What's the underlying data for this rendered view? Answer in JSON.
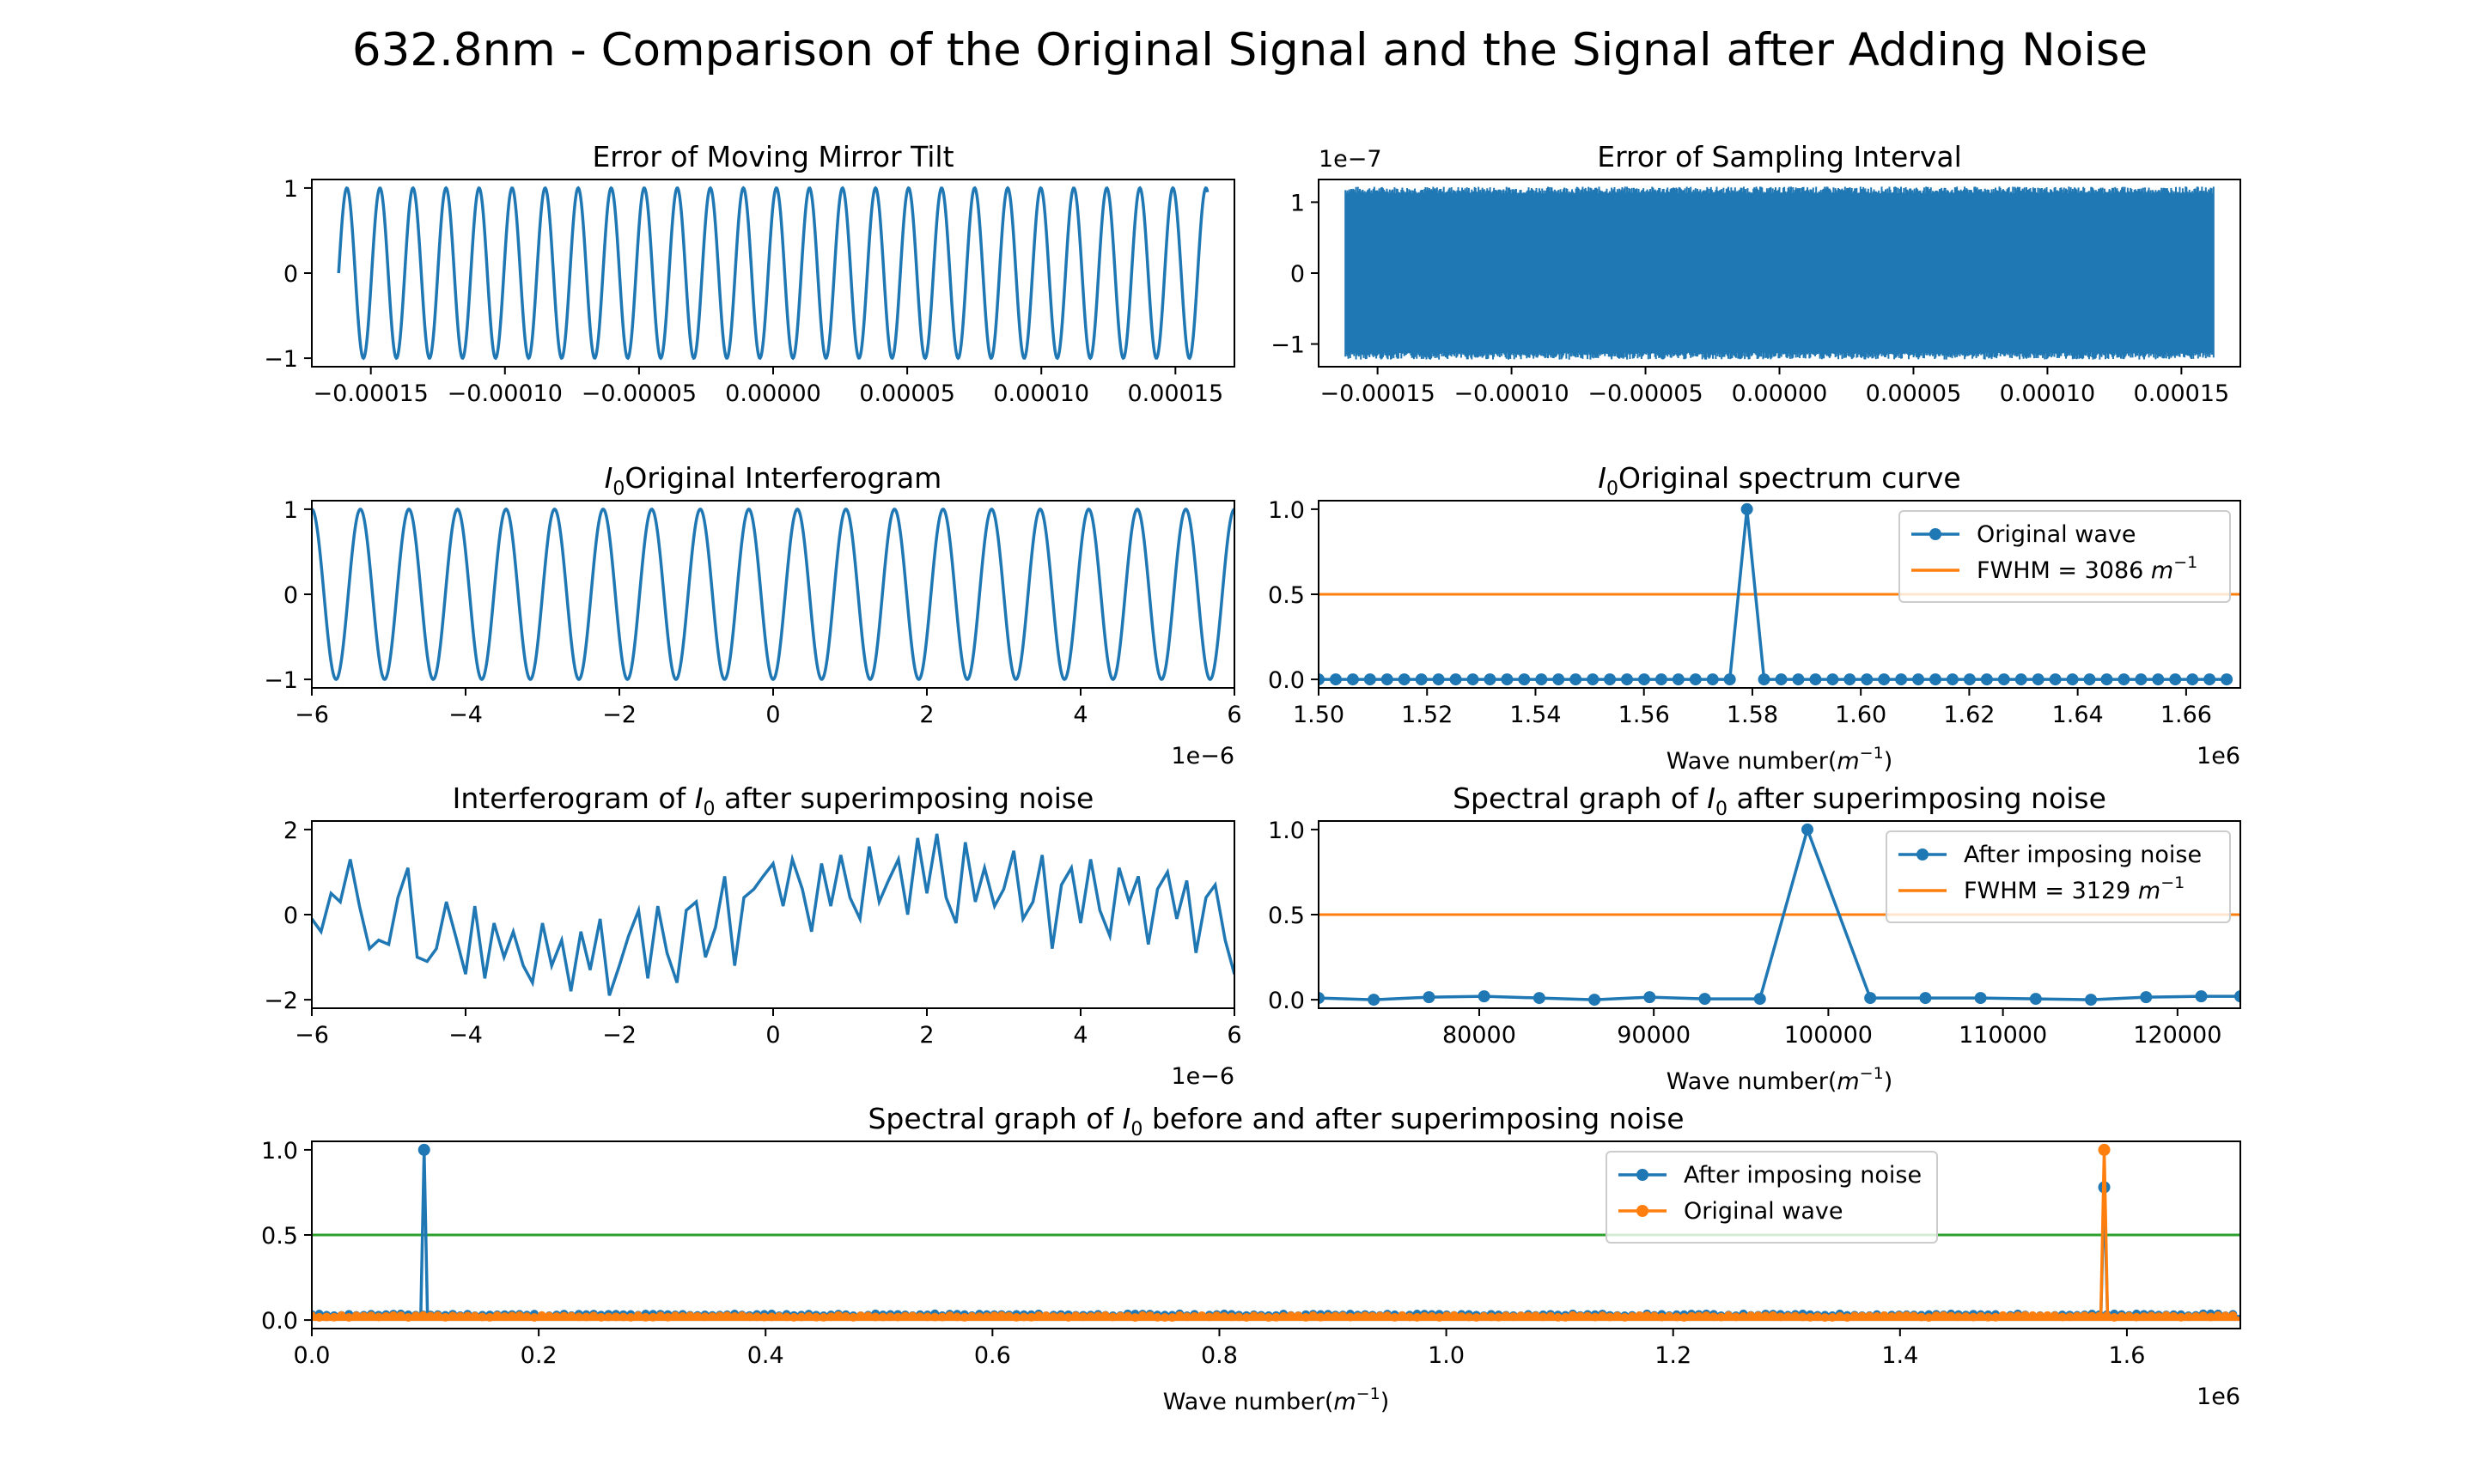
{
  "figure_title": "632.8nm - Comparison of the Original Signal and the Signal after Adding Noise",
  "colors": {
    "blue": "#1f77b4",
    "orange": "#ff7f0e",
    "green": "#2ca02c"
  },
  "chart_data": [
    {
      "id": "mirror",
      "type": "line",
      "title": "Error of Moving Mirror Tilt",
      "xlabel": "",
      "ylabel": "",
      "xlim": [
        -0.000172,
        0.000172
      ],
      "ylim": [
        -1.1,
        1.1
      ],
      "xticks": [
        -0.00015,
        -0.0001,
        -5e-05,
        0,
        5e-05,
        0.0001,
        0.00015
      ],
      "xtick_labels": [
        "−0.00015",
        "−0.00010",
        "−0.00005",
        "0.00000",
        "0.00005",
        "0.00010",
        "0.00015"
      ],
      "yticks": [
        -1,
        0,
        1
      ],
      "ytick_labels": [
        "−1",
        "0",
        "1"
      ],
      "series": [
        {
          "style": "sine",
          "x_range": [
            -0.000162,
            0.000162
          ],
          "cycles": 26.3,
          "amplitude": 1,
          "phase": 0
        }
      ]
    },
    {
      "id": "sampling",
      "type": "line",
      "title": "Error of Sampling Interval",
      "y_offset": "1e−7",
      "xlim": [
        -0.000172,
        0.000172
      ],
      "ylim": [
        -1.32,
        1.32
      ],
      "xticks": [
        -0.00015,
        -0.0001,
        -5e-05,
        0,
        5e-05,
        0.0001,
        0.00015
      ],
      "xtick_labels": [
        "−0.00015",
        "−0.00010",
        "−0.00005",
        "0.00000",
        "0.00005",
        "0.00010",
        "0.00015"
      ],
      "yticks": [
        -1,
        0,
        1
      ],
      "ytick_labels": [
        "−1",
        "0",
        "1"
      ],
      "series": [
        {
          "style": "noise-band",
          "x_range": [
            -0.000162,
            0.000162
          ],
          "amplitude": 1.22
        }
      ]
    },
    {
      "id": "interferogram",
      "type": "line",
      "title_parts": [
        "",
        "Original Interferogram"
      ],
      "xlim": [
        -6,
        6
      ],
      "ylim": [
        -1.1,
        1.1
      ],
      "x_offset": "1e−6",
      "xticks": [
        -6,
        -4,
        -2,
        0,
        2,
        4,
        6
      ],
      "xtick_labels": [
        "−6",
        "−4",
        "−2",
        "0",
        "2",
        "4",
        "6"
      ],
      "yticks": [
        -1,
        0,
        1
      ],
      "ytick_labels": [
        "−1",
        "0",
        "1"
      ],
      "series": [
        {
          "style": "sine",
          "x_range": [
            -6,
            6
          ],
          "cycles": 19,
          "amplitude": 1,
          "phase": 3.1416
        }
      ]
    },
    {
      "id": "spectrum",
      "type": "line",
      "title_parts": [
        "",
        "Original spectrum curve"
      ],
      "xlabel_parts": [
        "Wave number(",
        ")"
      ],
      "x_offset": "1e6",
      "xlim": [
        1.5,
        1.67
      ],
      "ylim": [
        -0.05,
        1.05
      ],
      "xticks": [
        1.5,
        1.52,
        1.54,
        1.56,
        1.58,
        1.6,
        1.62,
        1.64,
        1.66
      ],
      "xtick_labels": [
        "1.50",
        "1.52",
        "1.54",
        "1.56",
        "1.58",
        "1.60",
        "1.62",
        "1.64",
        "1.66"
      ],
      "yticks": [
        0,
        0.5,
        1
      ],
      "ytick_labels": [
        "0.0",
        "0.5",
        "1.0"
      ],
      "hline": 0.5,
      "legend": {
        "position": "upper right",
        "entries": [
          "Original wave",
          "FWHM = 3086 "
        ]
      },
      "series": [
        {
          "style": "peak",
          "start": 1.5,
          "step": 0.00316,
          "count": 54,
          "peak_x": 1.58,
          "peak_y": 1.0
        }
      ]
    },
    {
      "id": "noisy-interferogram",
      "type": "line",
      "title_parts": [
        "Interferogram of ",
        " after superimposing noise"
      ],
      "x_offset": "1e−6",
      "xlim": [
        -6,
        6
      ],
      "ylim": [
        -2.2,
        2.2
      ],
      "xticks": [
        -6,
        -4,
        -2,
        0,
        2,
        4,
        6
      ],
      "xtick_labels": [
        "−6",
        "−4",
        "−2",
        "0",
        "2",
        "4",
        "6"
      ],
      "yticks": [
        -2,
        0,
        2
      ],
      "ytick_labels": [
        "−2",
        "0",
        "2"
      ],
      "series": [
        {
          "style": "noisy",
          "x": [
            -6.0,
            -5.88,
            -5.75,
            -5.63,
            -5.5,
            -5.38,
            -5.25,
            -5.13,
            -5.0,
            -4.88,
            -4.75,
            -4.63,
            -4.5,
            -4.38,
            -4.25,
            -4.13,
            -4.0,
            -3.88,
            -3.75,
            -3.63,
            -3.5,
            -3.38,
            -3.25,
            -3.13,
            -3.0,
            -2.88,
            -2.75,
            -2.63,
            -2.5,
            -2.38,
            -2.25,
            -2.13,
            -2.0,
            -1.88,
            -1.75,
            -1.63,
            -1.5,
            -1.38,
            -1.25,
            -1.13,
            -1.0,
            -0.88,
            -0.75,
            -0.63,
            -0.5,
            -0.38,
            -0.25,
            -0.13,
            0.0,
            0.13,
            0.25,
            0.38,
            0.5,
            0.63,
            0.75,
            0.88,
            1.0,
            1.13,
            1.25,
            1.38,
            1.5,
            1.63,
            1.75,
            1.88,
            2.0,
            2.13,
            2.25,
            2.38,
            2.5,
            2.63,
            2.75,
            2.88,
            3.0,
            3.13,
            3.25,
            3.38,
            3.5,
            3.63,
            3.75,
            3.88,
            4.0,
            4.13,
            4.25,
            4.38,
            4.5,
            4.63,
            4.75,
            4.88,
            5.0,
            5.13,
            5.25,
            5.38,
            5.5,
            5.63,
            5.75,
            5.88,
            6.0
          ],
          "y": [
            -0.1,
            -0.4,
            0.5,
            0.3,
            1.3,
            0.2,
            -0.8,
            -0.6,
            -0.7,
            0.4,
            1.1,
            -1.0,
            -1.1,
            -0.8,
            0.3,
            -0.5,
            -1.4,
            0.2,
            -1.5,
            -0.2,
            -1.0,
            -0.4,
            -1.2,
            -1.6,
            -0.2,
            -1.2,
            -0.6,
            -1.8,
            -0.4,
            -1.3,
            -0.1,
            -1.9,
            -1.2,
            -0.5,
            0.1,
            -1.5,
            0.2,
            -0.9,
            -1.6,
            0.1,
            0.3,
            -1.0,
            -0.3,
            0.9,
            -1.2,
            0.4,
            0.6,
            0.9,
            1.2,
            0.2,
            1.3,
            0.6,
            -0.4,
            1.2,
            0.2,
            1.4,
            0.4,
            -0.1,
            1.6,
            0.3,
            0.8,
            1.3,
            0.0,
            1.8,
            0.5,
            1.9,
            0.4,
            -0.2,
            1.7,
            0.3,
            1.1,
            0.2,
            0.6,
            1.5,
            -0.1,
            0.3,
            1.4,
            -0.8,
            0.7,
            1.1,
            -0.2,
            1.3,
            0.1,
            -0.5,
            1.1,
            0.3,
            0.9,
            -0.7,
            0.6,
            1.0,
            -0.1,
            0.8,
            -0.9,
            0.4,
            0.7,
            -0.6,
            -1.4
          ]
        }
      ]
    },
    {
      "id": "noisy-spectrum",
      "type": "line",
      "title_parts": [
        "Spectral graph of ",
        " after superimposing noise"
      ],
      "xlabel_parts": [
        "Wave number(",
        ")"
      ],
      "xlim": [
        70800,
        123600
      ],
      "ylim": [
        -0.05,
        1.05
      ],
      "xticks": [
        80000,
        90000,
        100000,
        110000,
        120000
      ],
      "xtick_labels": [
        "80000",
        "90000",
        "100000",
        "110000",
        "120000"
      ],
      "yticks": [
        0,
        0.5,
        1
      ],
      "ytick_labels": [
        "0.0",
        "0.5",
        "1.0"
      ],
      "hline": 0.5,
      "legend": {
        "position": "upper right",
        "entries": [
          "After imposing noise",
          "FWHM = 3129 "
        ]
      },
      "series": [
        {
          "style": "points",
          "x": [
            70800,
            73960,
            77120,
            80280,
            83440,
            86600,
            89760,
            92920,
            96080,
            98800,
            102400,
            105560,
            108720,
            111880,
            115040,
            118200,
            121360,
            123600
          ],
          "y": [
            0.01,
            0.0,
            0.015,
            0.02,
            0.01,
            0.0,
            0.015,
            0.005,
            0.005,
            1.0,
            0.01,
            0.01,
            0.01,
            0.005,
            0.0,
            0.015,
            0.02,
            0.02
          ]
        }
      ]
    },
    {
      "id": "combined-spectrum",
      "type": "line",
      "title_parts": [
        "Spectral graph of ",
        " before and after superimposing noise"
      ],
      "xlabel_parts": [
        "Wave number(",
        ")"
      ],
      "x_offset": "1e6",
      "xlim": [
        0,
        1.7
      ],
      "ylim": [
        -0.05,
        1.05
      ],
      "xticks": [
        0,
        0.2,
        0.4,
        0.6,
        0.8,
        1.0,
        1.2,
        1.4,
        1.6
      ],
      "xtick_labels": [
        "0.0",
        "0.2",
        "0.4",
        "0.6",
        "0.8",
        "1.0",
        "1.2",
        "1.4",
        "1.6"
      ],
      "yticks": [
        0,
        0.5,
        1
      ],
      "ytick_labels": [
        "0.0",
        "0.5",
        "1.0"
      ],
      "hline": 0.5,
      "legend": {
        "position": "upper right",
        "entries": [
          "After imposing noise",
          "Original wave"
        ]
      },
      "series": [
        {
          "name": "After imposing noise",
          "style": "floor",
          "peaks": [
            [
              0.099,
              1.0
            ],
            [
              1.58,
              0.78
            ]
          ],
          "floor": 0.02
        },
        {
          "name": "Original wave",
          "style": "floor",
          "peaks": [
            [
              1.58,
              1.0
            ]
          ],
          "floor": 0.01
        }
      ]
    }
  ]
}
